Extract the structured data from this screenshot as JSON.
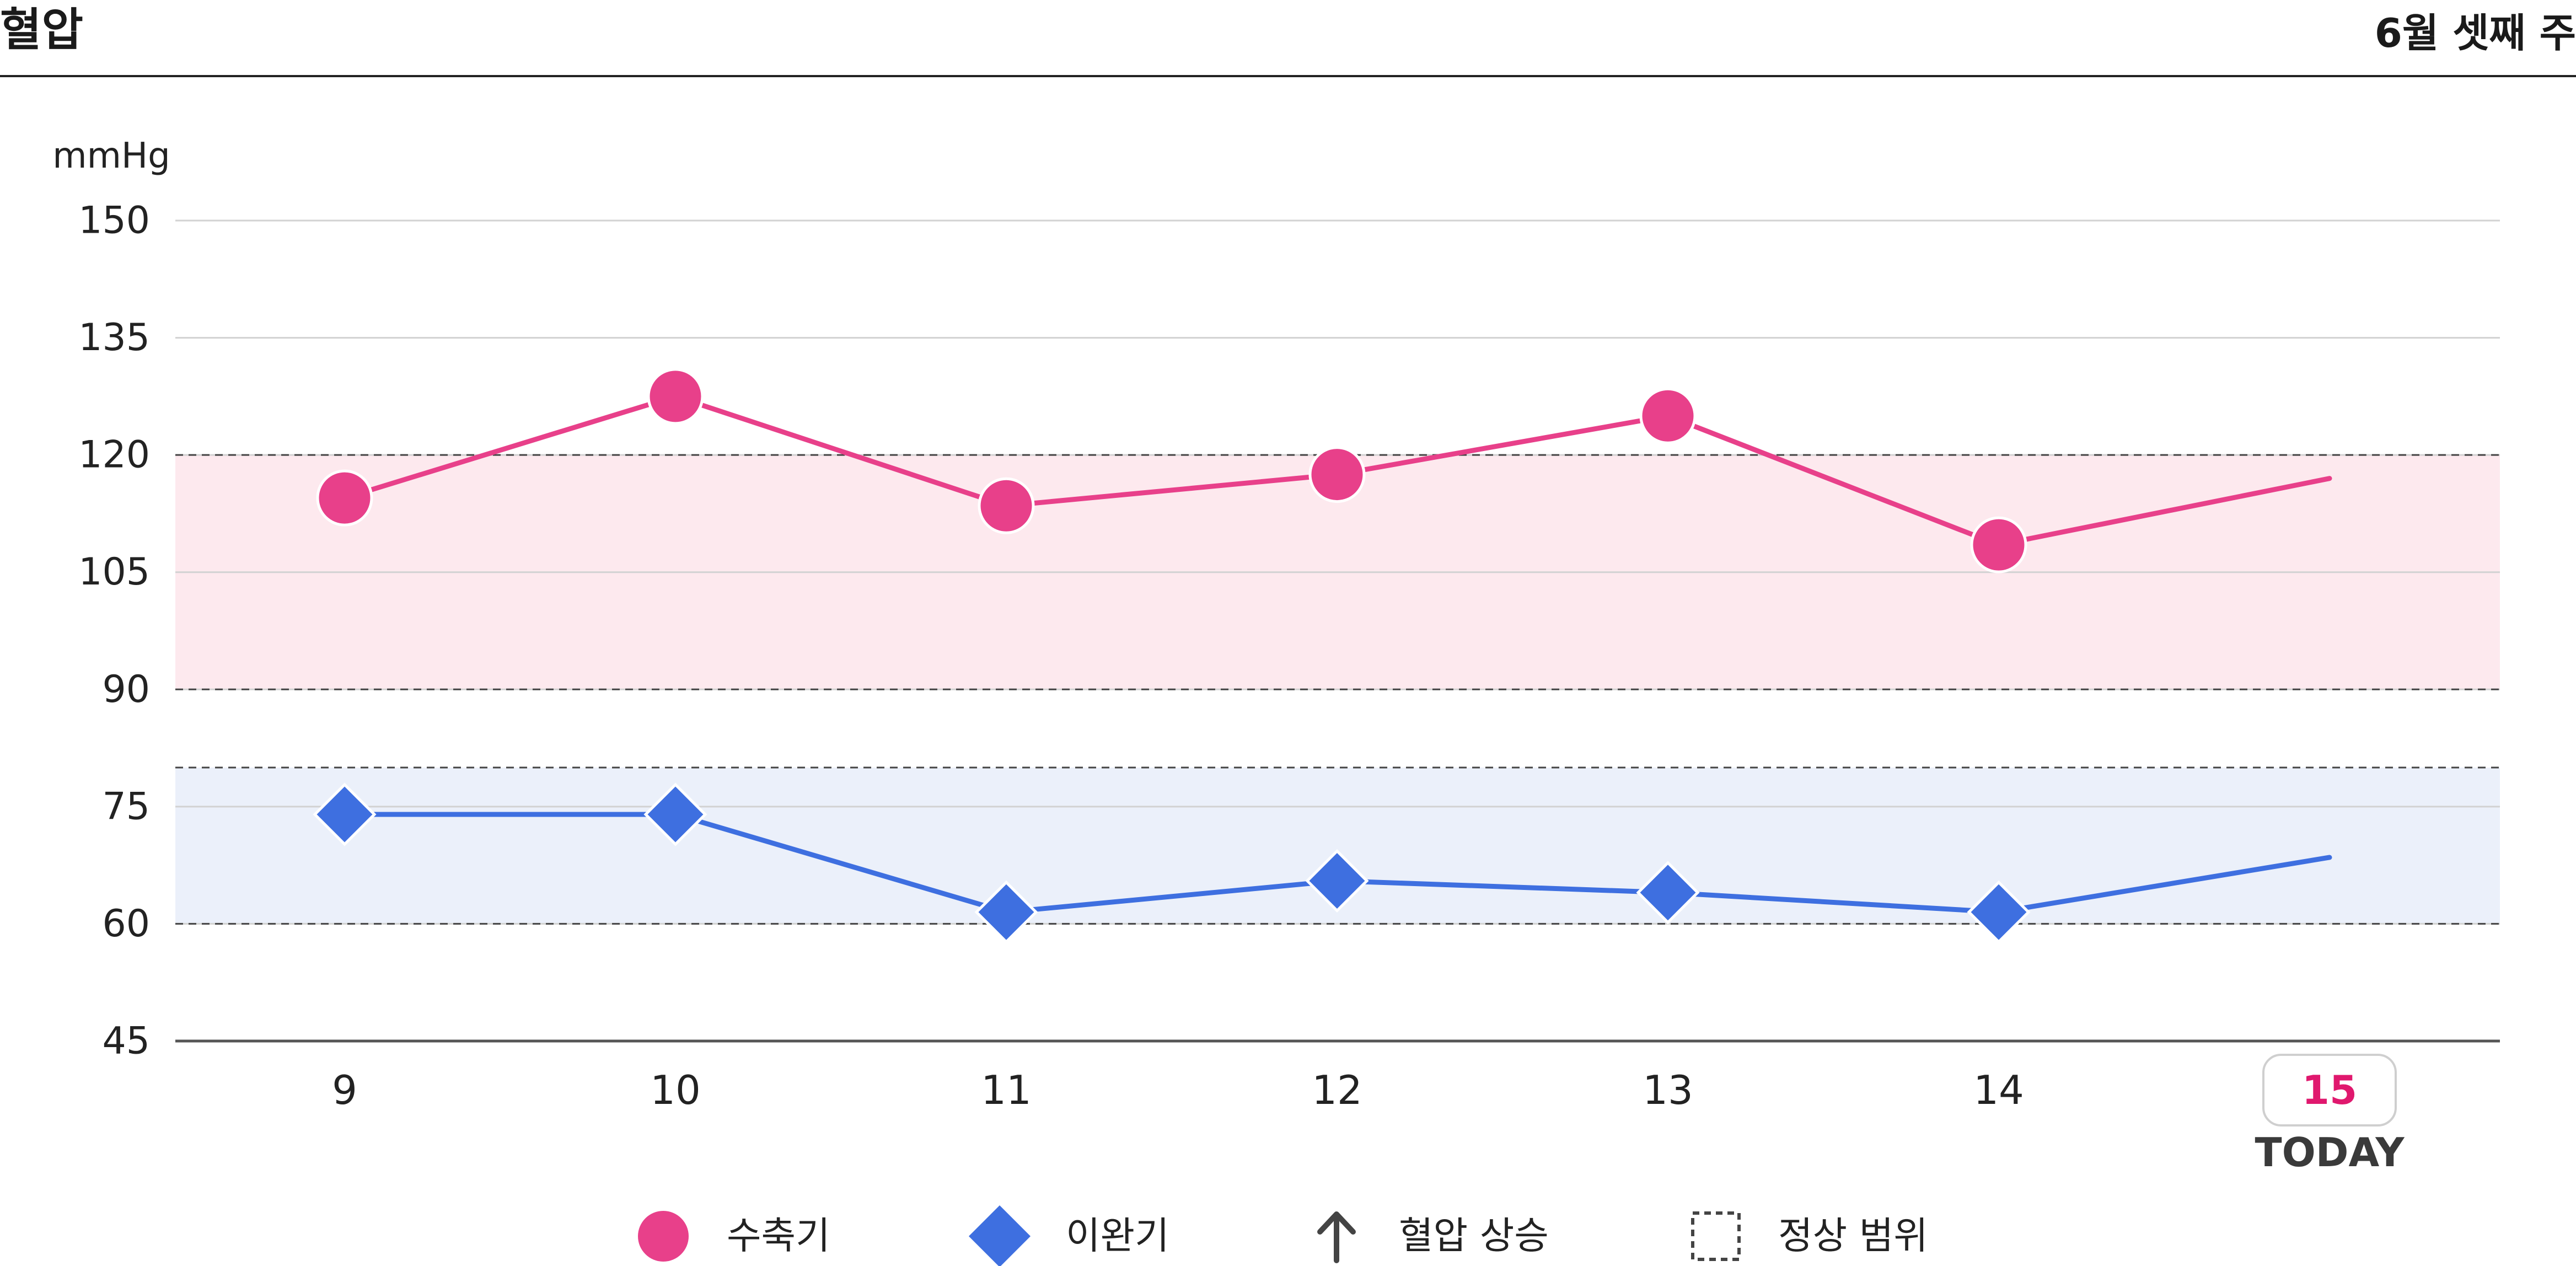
{
  "header": {
    "title": "혈압",
    "week_label": "6월 셋째 주"
  },
  "chart_data": {
    "type": "line",
    "unit_label": "mmHg",
    "x": [
      "9",
      "10",
      "11",
      "12",
      "13",
      "14",
      "15"
    ],
    "today_index": 6,
    "today_label": "TODAY",
    "ylim": [
      45,
      150
    ],
    "yticks": [
      45,
      60,
      75,
      90,
      105,
      120,
      135,
      150
    ],
    "grid": true,
    "series": [
      {
        "name": "수축기",
        "marker": "circle",
        "color": "#e8408a",
        "values": [
          114.5,
          127.5,
          113.5,
          117.5,
          125,
          108.5,
          117
        ]
      },
      {
        "name": "이완기",
        "marker": "diamond",
        "color": "#3e6fe0",
        "values": [
          74,
          74,
          61.5,
          65.5,
          64,
          61.5,
          68.5
        ]
      }
    ],
    "normal_ranges": [
      {
        "name": "수축기",
        "min": 90,
        "max": 120,
        "fill": "#fde9ee"
      },
      {
        "name": "이완기",
        "min": 60,
        "max": 80,
        "fill": "#ebf0fa"
      }
    ],
    "legend": [
      {
        "label": "수축기",
        "symbol": "circle",
        "color": "#e8408a"
      },
      {
        "label": "이완기",
        "symbol": "diamond",
        "color": "#3e6fe0"
      },
      {
        "label": "혈압 상승",
        "symbol": "arrow-up",
        "color": "#444444"
      },
      {
        "label": "정상 범위",
        "symbol": "dashed-box",
        "color": "#444444"
      }
    ],
    "legend_position": "bottom",
    "today_color": "#e0186e"
  }
}
